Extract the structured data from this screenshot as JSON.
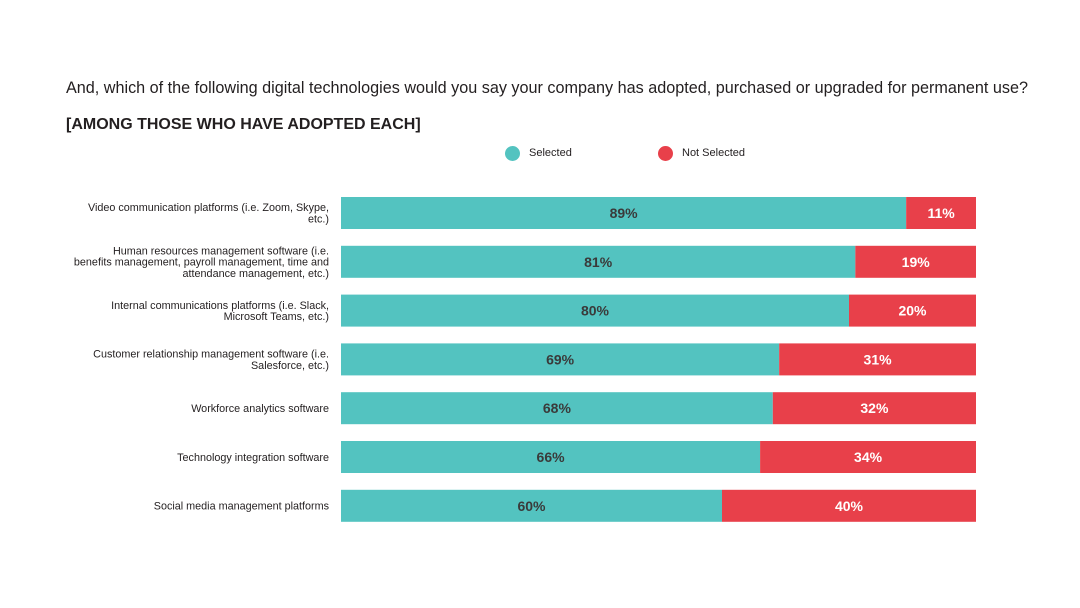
{
  "question": "And, which of the following digital technologies would you say your company has adopted, purchased or upgraded for permanent use?",
  "subtitle": "[AMONG THOSE WHO HAVE ADOPTED EACH]",
  "colors": {
    "selected": "#53c3c0",
    "not_selected": "#e8404a",
    "selected_text": "#3a3a3a",
    "not_selected_text": "#ffffff"
  },
  "chart_data": {
    "type": "bar",
    "orientation": "horizontal",
    "stacked": true,
    "title": "And, which of the following digital technologies would you say your company has adopted, purchased or upgraded for permanent use?",
    "subtitle": "[AMONG THOSE WHO HAVE ADOPTED EACH]",
    "xlim": [
      0,
      100
    ],
    "legend": [
      "Selected",
      "Not Selected"
    ],
    "legend_position": "top",
    "categories": [
      [
        "Video communication platforms (i.e. Zoom, Skype,",
        "etc.)"
      ],
      [
        "Human resources management software (i.e.",
        "benefits management, payroll management, time and",
        "attendance management, etc.)"
      ],
      [
        "Internal communications platforms (i.e. Slack,",
        "Microsoft Teams, etc.)"
      ],
      [
        "Customer relationship management software (i.e.",
        "Salesforce, etc.)"
      ],
      [
        "Workforce analytics software"
      ],
      [
        "Technology integration software"
      ],
      [
        "Social media management platforms"
      ]
    ],
    "series": [
      {
        "name": "Selected",
        "values": [
          89,
          81,
          80,
          69,
          68,
          66,
          60
        ],
        "labels": [
          "89%",
          "81%",
          "80%",
          "69%",
          "68%",
          "66%",
          "60%"
        ]
      },
      {
        "name": "Not Selected",
        "values": [
          11,
          19,
          20,
          31,
          32,
          34,
          40
        ],
        "labels": [
          "11%",
          "19%",
          "20%",
          "31%",
          "32%",
          "34%",
          "40%"
        ]
      }
    ]
  }
}
